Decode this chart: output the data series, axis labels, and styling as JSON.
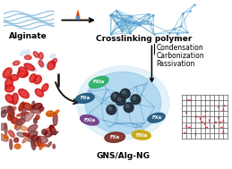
{
  "background_color": "#ffffff",
  "alginate_label": "Alginate",
  "crosslink_label": "Crosslinking polymer",
  "gns_label": "GNS/Alg-NG",
  "step_labels": [
    "Condensation",
    "Carbonization",
    "Passivation"
  ],
  "light_blue": "#a8cce0",
  "blue_net": "#6aadd5",
  "mid_blue": "#4a90c4",
  "dark_particle": "#2c3e50",
  "factor_colors": [
    "#27ae60",
    "#1a5276",
    "#6e2f8c",
    "#8b0000",
    "#c8a400",
    "#1a5276",
    "#27ae60"
  ],
  "factor_labels": [
    "FXIa",
    "FXa",
    "FXIa",
    "FXa",
    "FXIa",
    "FXa",
    "FXa"
  ],
  "grid_color": "#555555",
  "pink_arrow": "#e8192c",
  "label_fontsize": 6.5,
  "step_fontsize": 5.5,
  "fig_width": 2.59,
  "fig_height": 1.89,
  "dpi": 100
}
